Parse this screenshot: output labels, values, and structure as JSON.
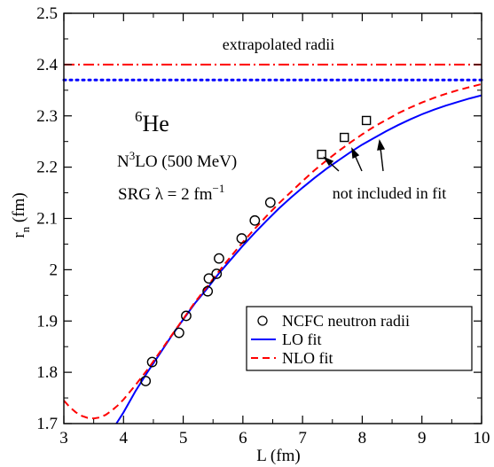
{
  "chart_data": {
    "type": "line",
    "xlabel": "L (fm)",
    "ylabel_main": "r",
    "ylabel_sub": "n",
    "ylabel_unit": " (fm)",
    "xlim": [
      3,
      10
    ],
    "ylim": [
      1.7,
      2.5
    ],
    "x_ticks": [
      3,
      4,
      5,
      6,
      7,
      8,
      9,
      10
    ],
    "x_tick_labels": [
      "3",
      "4",
      "5",
      "6",
      "7",
      "8",
      "9",
      "10"
    ],
    "y_ticks": [
      1.7,
      1.8,
      1.9,
      2.0,
      2.1,
      2.2,
      2.3,
      2.4,
      2.5
    ],
    "y_tick_labels": [
      "1.7",
      "1.8",
      "1.9",
      "2",
      "2.1",
      "2.2",
      "2.3",
      "2.4",
      "2.5"
    ],
    "grid": false,
    "legend_placement": "bottom-right",
    "colors": {
      "lo": "#0000ff",
      "nlo": "#ff0000",
      "extrap_nlo": "#ff0000",
      "extrap_lo": "#0000ff"
    },
    "annotations": {
      "extrapolated": "extrapolated radii",
      "not_included": "not included in fit",
      "nucleus_mass": "6",
      "nucleus_symbol": "He",
      "interaction_pre": "N",
      "interaction_sup": "3",
      "interaction_post": "LO (500 MeV)",
      "srg_text": "SRG λ = 2 fm",
      "srg_sup": "−1"
    },
    "legend": {
      "ncfc": "NCFC neutron radii",
      "lo": "LO fit",
      "nlo": "NLO fit"
    },
    "extrapolated_radii": {
      "nlo": 2.4,
      "lo": 2.37
    },
    "ncfc_points_fit": [
      [
        4.37,
        1.783
      ],
      [
        4.48,
        1.82
      ],
      [
        4.93,
        1.877
      ],
      [
        5.05,
        1.91
      ],
      [
        5.41,
        1.958
      ],
      [
        5.43,
        1.983
      ],
      [
        5.56,
        1.992
      ],
      [
        5.6,
        2.022
      ],
      [
        5.98,
        2.061
      ],
      [
        6.2,
        2.096
      ],
      [
        6.46,
        2.131
      ]
    ],
    "ncfc_points_excluded": [
      [
        7.32,
        2.225
      ],
      [
        7.7,
        2.258
      ],
      [
        8.07,
        2.291
      ]
    ],
    "lo_fit": [
      [
        3.88,
        1.7
      ],
      [
        4.0,
        1.722
      ],
      [
        4.2,
        1.763
      ],
      [
        4.4,
        1.8
      ],
      [
        4.6,
        1.835
      ],
      [
        4.8,
        1.87
      ],
      [
        5.0,
        1.903
      ],
      [
        5.2,
        1.935
      ],
      [
        5.4,
        1.963
      ],
      [
        5.6,
        1.993
      ],
      [
        5.8,
        2.02
      ],
      [
        6.0,
        2.047
      ],
      [
        6.2,
        2.072
      ],
      [
        6.4,
        2.096
      ],
      [
        6.6,
        2.119
      ],
      [
        6.8,
        2.14
      ],
      [
        7.0,
        2.16
      ],
      [
        7.2,
        2.179
      ],
      [
        7.4,
        2.197
      ],
      [
        7.6,
        2.213
      ],
      [
        7.8,
        2.229
      ],
      [
        8.0,
        2.244
      ],
      [
        8.2,
        2.257
      ],
      [
        8.4,
        2.27
      ],
      [
        8.6,
        2.282
      ],
      [
        8.8,
        2.293
      ],
      [
        9.0,
        2.303
      ],
      [
        9.2,
        2.312
      ],
      [
        9.4,
        2.32
      ],
      [
        9.6,
        2.327
      ],
      [
        9.8,
        2.334
      ],
      [
        10.0,
        2.34
      ]
    ],
    "nlo_fit": [
      [
        3.0,
        1.745
      ],
      [
        3.1,
        1.732
      ],
      [
        3.2,
        1.722
      ],
      [
        3.3,
        1.715
      ],
      [
        3.4,
        1.711
      ],
      [
        3.5,
        1.71
      ],
      [
        3.6,
        1.712
      ],
      [
        3.7,
        1.717
      ],
      [
        3.8,
        1.725
      ],
      [
        3.9,
        1.735
      ],
      [
        4.0,
        1.747
      ],
      [
        4.2,
        1.775
      ],
      [
        4.4,
        1.805
      ],
      [
        4.6,
        1.838
      ],
      [
        4.8,
        1.871
      ],
      [
        5.0,
        1.904
      ],
      [
        5.2,
        1.937
      ],
      [
        5.4,
        1.967
      ],
      [
        5.6,
        1.997
      ],
      [
        5.8,
        2.026
      ],
      [
        6.0,
        2.054
      ],
      [
        6.2,
        2.08
      ],
      [
        6.4,
        2.105
      ],
      [
        6.6,
        2.129
      ],
      [
        6.8,
        2.151
      ],
      [
        7.0,
        2.173
      ],
      [
        7.2,
        2.194
      ],
      [
        7.4,
        2.213
      ],
      [
        7.6,
        2.231
      ],
      [
        7.8,
        2.248
      ],
      [
        8.0,
        2.264
      ],
      [
        8.2,
        2.279
      ],
      [
        8.4,
        2.292
      ],
      [
        8.6,
        2.305
      ],
      [
        8.8,
        2.316
      ],
      [
        9.0,
        2.326
      ],
      [
        9.2,
        2.335
      ],
      [
        9.4,
        2.343
      ],
      [
        9.6,
        2.35
      ],
      [
        9.8,
        2.356
      ],
      [
        10.0,
        2.362
      ]
    ]
  }
}
